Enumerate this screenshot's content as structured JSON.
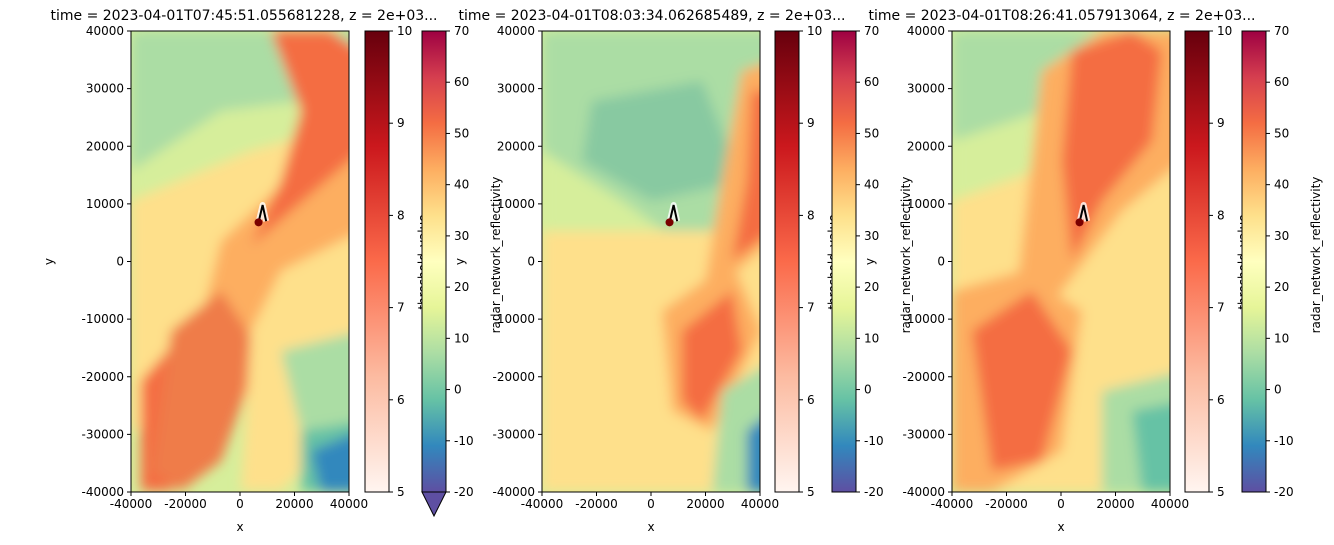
{
  "chart_data": [
    {
      "type": "heatmap",
      "title": "time = 2023-04-01T07:45:51.055681228, z = 2e+03...",
      "xlabel": "x",
      "ylabel": "y",
      "xlim": [
        -40000,
        40000
      ],
      "ylim": [
        -40000,
        40000
      ],
      "xticks": [
        -40000,
        -20000,
        0,
        20000,
        40000
      ],
      "yticks": [
        -40000,
        -30000,
        -20000,
        -10000,
        0,
        10000,
        20000,
        30000,
        40000
      ],
      "colormap": "Spectral_r",
      "track_points": [
        [
          6800,
          6800
        ],
        [
          8300,
          9800
        ],
        [
          9600,
          7000
        ]
      ],
      "colorbars": [
        {
          "label": "threshold_value",
          "cmap": "Reds",
          "range": [
            5,
            10
          ],
          "ticks": [
            5,
            6,
            7,
            8,
            9,
            10
          ],
          "extend": "none"
        },
        {
          "label": "radar_network_reflectivity",
          "cmap": "Spectral_r",
          "range": [
            -20,
            70
          ],
          "ticks": [
            -20,
            -10,
            0,
            10,
            20,
            30,
            40,
            50,
            60,
            70
          ],
          "extend": "min"
        }
      ]
    },
    {
      "type": "heatmap",
      "title": "time = 2023-04-01T08:03:34.062685489, z = 2e+03...",
      "xlabel": "x",
      "ylabel": "y",
      "xlim": [
        -40000,
        40000
      ],
      "ylim": [
        -40000,
        40000
      ],
      "xticks": [
        -40000,
        -20000,
        0,
        20000,
        40000
      ],
      "yticks": [
        -40000,
        -30000,
        -20000,
        -10000,
        0,
        10000,
        20000,
        30000,
        40000
      ],
      "colormap": "Spectral_r",
      "track_points": [
        [
          6800,
          6800
        ],
        [
          8300,
          9800
        ],
        [
          9600,
          7000
        ]
      ],
      "colorbars": [
        {
          "label": "threshold_value",
          "cmap": "Reds",
          "range": [
            5,
            10
          ],
          "ticks": [
            5,
            6,
            7,
            8,
            9,
            10
          ],
          "extend": "none"
        },
        {
          "label": "radar_network_reflectivity",
          "cmap": "Spectral_r",
          "range": [
            -20,
            70
          ],
          "ticks": [
            -20,
            -10,
            0,
            10,
            20,
            30,
            40,
            50,
            60,
            70
          ],
          "extend": "none"
        }
      ]
    },
    {
      "type": "heatmap",
      "title": "time = 2023-04-01T08:26:41.057913064, z = 2e+03...",
      "xlabel": "x",
      "ylabel": "y",
      "xlim": [
        -40000,
        40000
      ],
      "ylim": [
        -40000,
        40000
      ],
      "xticks": [
        -40000,
        -20000,
        0,
        20000,
        40000
      ],
      "yticks": [
        -40000,
        -30000,
        -20000,
        -10000,
        0,
        10000,
        20000,
        30000,
        40000
      ],
      "colormap": "Spectral_r",
      "track_points": [
        [
          6800,
          6800
        ],
        [
          8300,
          9800
        ],
        [
          9600,
          7000
        ]
      ],
      "colorbars": [
        {
          "label": "threshold_value",
          "cmap": "Reds",
          "range": [
            5,
            10
          ],
          "ticks": [
            5,
            6,
            7,
            8,
            9,
            10
          ],
          "extend": "none"
        },
        {
          "label": "radar_network_reflectivity",
          "cmap": "Spectral_r",
          "range": [
            -20,
            70
          ],
          "ticks": [
            -20,
            -10,
            0,
            10,
            20,
            30,
            40,
            50,
            60,
            70
          ],
          "extend": "none"
        }
      ]
    }
  ],
  "colors": {
    "track_line": "#000000",
    "track_dot": "#7a0000",
    "cell_highlight": "#ffffff"
  }
}
